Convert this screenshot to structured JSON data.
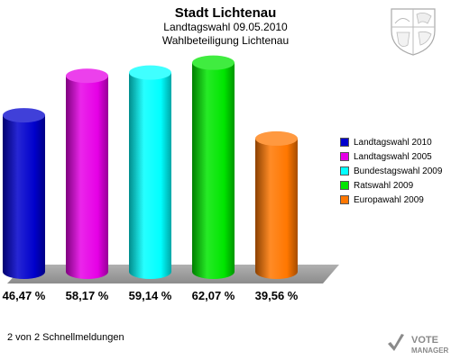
{
  "chart_data": {
    "type": "bar",
    "title": "Stadt Lichtenau",
    "subtitle": "Landtagswahl 09.05.2010",
    "subtitle2": "Wahlbeteiligung Lichtenau",
    "categories": [
      "Landtagswahl 2010",
      "Landtagswahl 2005",
      "Bundestagswahl 2009",
      "Ratswahl 2009",
      "Europawahl 2009"
    ],
    "values": [
      46.47,
      58.17,
      59.14,
      62.07,
      39.56
    ],
    "value_labels": [
      "46,47 %",
      "58,17 %",
      "59,14 %",
      "62,07 %",
      "39,56 %"
    ],
    "colors": [
      "#0000cc",
      "#e600e6",
      "#00ffff",
      "#00e600",
      "#ff7700"
    ],
    "ylim": [
      0,
      70
    ],
    "legend_position": "right",
    "grid": false
  },
  "footer": {
    "text": "2 von 2 Schnellmeldungen"
  },
  "logo": {
    "line1": "VOTE",
    "line2": "MANAGER",
    "icon": "checkmark-icon"
  },
  "crest": {
    "icon": "coat-of-arms-icon"
  }
}
